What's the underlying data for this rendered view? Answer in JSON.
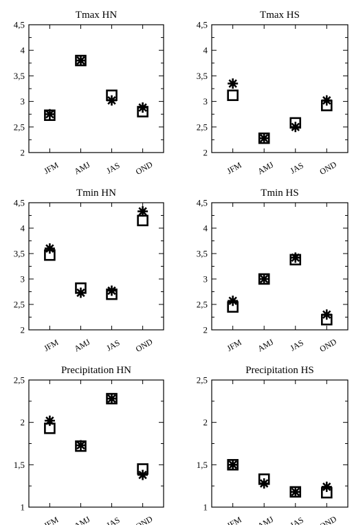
{
  "chart_data": [
    {
      "type": "scatter",
      "title": "Tmax HN",
      "categories": [
        "JFM",
        "AMJ",
        "JAS",
        "OND"
      ],
      "y_ticks": [
        "2",
        "2,5",
        "3",
        "3,5",
        "4",
        "4,5"
      ],
      "ylim": [
        2,
        4.5
      ],
      "series": [
        {
          "marker": "square",
          "values": [
            2.73,
            3.8,
            3.12,
            2.8
          ]
        },
        {
          "marker": "asterisk",
          "values": [
            2.75,
            3.8,
            3.02,
            2.88
          ]
        }
      ]
    },
    {
      "type": "scatter",
      "title": "Tmax HS",
      "categories": [
        "JFM",
        "AMJ",
        "JAS",
        "OND"
      ],
      "y_ticks": [
        "2",
        "2,5",
        "3",
        "3,5",
        "4",
        "4,5"
      ],
      "ylim": [
        2,
        4.5
      ],
      "series": [
        {
          "marker": "square",
          "values": [
            3.12,
            2.28,
            2.58,
            2.92
          ]
        },
        {
          "marker": "asterisk",
          "values": [
            3.35,
            2.28,
            2.5,
            3.02
          ]
        }
      ]
    },
    {
      "type": "scatter",
      "title": "Tmin HN",
      "categories": [
        "JFM",
        "AMJ",
        "JAS",
        "OND"
      ],
      "y_ticks": [
        "2",
        "2,5",
        "3",
        "3,5",
        "4",
        "4,5"
      ],
      "ylim": [
        2,
        4.5
      ],
      "series": [
        {
          "marker": "square",
          "values": [
            3.47,
            2.82,
            2.7,
            4.15
          ]
        },
        {
          "marker": "asterisk",
          "values": [
            3.6,
            2.73,
            2.77,
            4.33
          ]
        }
      ]
    },
    {
      "type": "scatter",
      "title": "Tmin HS",
      "categories": [
        "JFM",
        "AMJ",
        "JAS",
        "OND"
      ],
      "y_ticks": [
        "2",
        "2,5",
        "3",
        "3,5",
        "4",
        "4,5"
      ],
      "ylim": [
        2,
        4.5
      ],
      "series": [
        {
          "marker": "square",
          "values": [
            2.45,
            3.0,
            3.38,
            2.2
          ]
        },
        {
          "marker": "asterisk",
          "values": [
            2.57,
            3.0,
            3.42,
            2.3
          ]
        }
      ]
    },
    {
      "type": "scatter",
      "title": "Precipitation HN",
      "categories": [
        "JFM",
        "AMJ",
        "JAS",
        "OND"
      ],
      "y_ticks": [
        "1",
        "1,5",
        "2",
        "2,5"
      ],
      "ylim": [
        1,
        2.5
      ],
      "series": [
        {
          "marker": "square",
          "values": [
            1.93,
            1.72,
            2.28,
            1.45
          ]
        },
        {
          "marker": "asterisk",
          "values": [
            2.02,
            1.73,
            2.28,
            1.38
          ]
        }
      ]
    },
    {
      "type": "scatter",
      "title": "Precipitation HS",
      "categories": [
        "JFM",
        "AMJ",
        "JAS",
        "OND"
      ],
      "y_ticks": [
        "1",
        "1,5",
        "2",
        "2,5"
      ],
      "ylim": [
        1,
        2.5
      ],
      "series": [
        {
          "marker": "square",
          "values": [
            1.5,
            1.33,
            1.18,
            1.17
          ]
        },
        {
          "marker": "asterisk",
          "values": [
            1.5,
            1.28,
            1.18,
            1.24
          ]
        }
      ]
    }
  ]
}
